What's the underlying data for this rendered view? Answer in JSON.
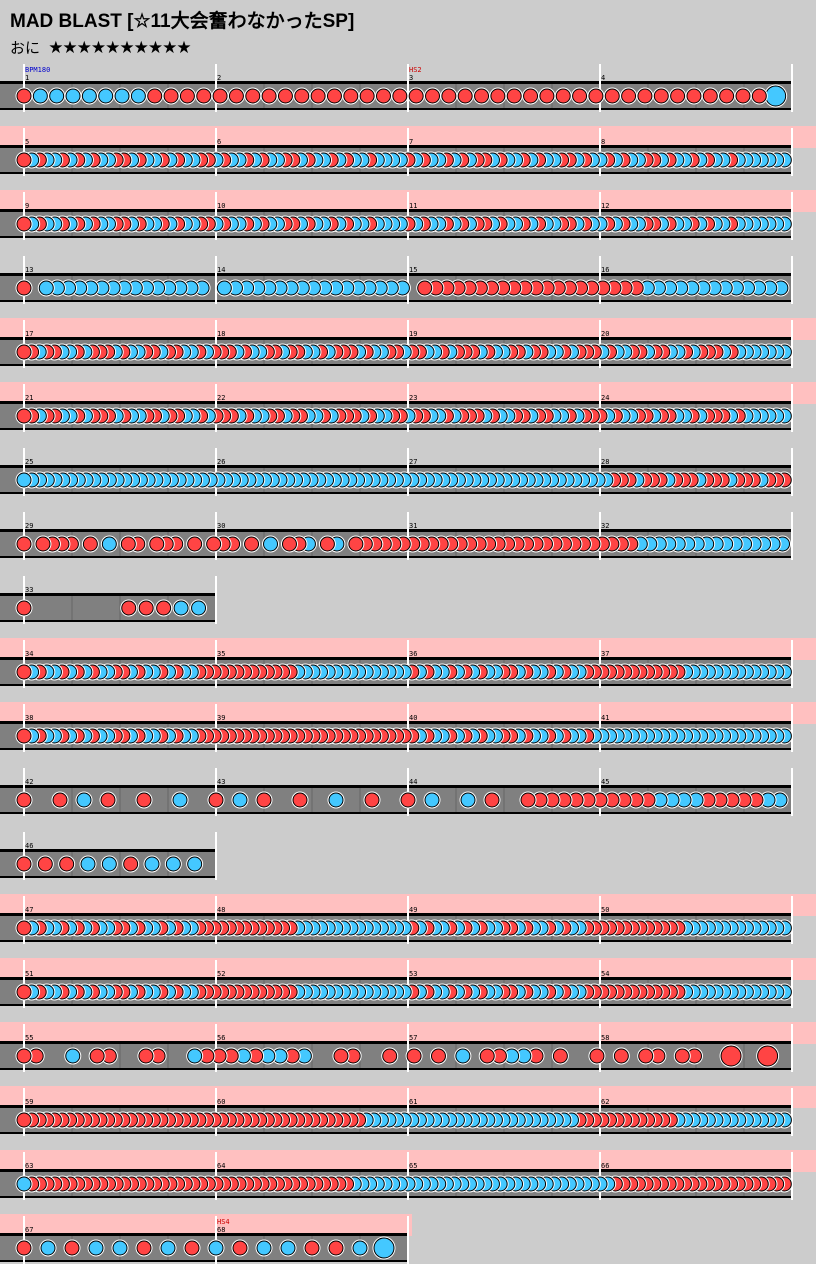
{
  "title": "MAD BLAST [☆11大会奮わなかったSP]",
  "difficulty": {
    "label": "おに",
    "stars": "★★★★★★★★★★"
  },
  "colors": {
    "background": "#cccccc",
    "lane": "#808080",
    "gogo_band": "#ffc0c0",
    "don": "#ff4444",
    "ka": "#44c8ff"
  },
  "chart_data": {
    "type": "taiko_score",
    "initial_bpm": 180,
    "events": [
      {
        "measure": 1,
        "text": "BPM180",
        "kind": "bpm"
      },
      {
        "measure": 3,
        "text": "HS2",
        "kind": "scroll"
      },
      {
        "measure": 68,
        "text": "HS4",
        "kind": "scroll"
      }
    ],
    "rows": [
      {
        "measures": [
          1,
          2,
          3,
          4
        ],
        "gogo": false,
        "pattern": "dkkkkkkkmmmmmmmmmmmmmmmmmmmmmmmmmmmmmmmmmmmmmmB"
      },
      {
        "measures": [
          5,
          6,
          7,
          8
        ],
        "gogo": true,
        "pattern": "dkdkkdkdkdkkddkdkkdkdkkddkdkkdkdkkddkdkkdkdkkdkkkkdkdkkdkdkddkdkkdkdkkddkdkkdkdkkddkdkkdkdkkdkkkkkkk"
      },
      {
        "measures": [
          9,
          10,
          11,
          12
        ],
        "gogo": true,
        "pattern": "dkdkkdkdkdkkddkdkkdkdkkddkdkkdkdkkddkdkkdkdkkdkkkkdkdkkdkdkddkdkkdkdkkddkdkkdkdkkddkdkkdkdkkdkkkkkkk"
      },
      {
        "measures": [
          13,
          14,
          15,
          16
        ],
        "gogo": false,
        "pattern": "d kkkkkkkkkkkkkkk kkkkkkkkkkkkkkkkk ddddddddddddddddddddkkkkkkkkkkkkk"
      },
      {
        "measures": [
          17,
          18,
          19,
          20
        ],
        "gogo": true,
        "pattern": "ddkddkkdkdddkdkkddkddkkdkdddkdkkddkddkkdkdddkdkkddkddkkdkdddkdkkddkddkkdkdddkdkkddkddkkdkdddkdkkkkkkk"
      },
      {
        "measures": [
          21,
          22,
          23,
          24
        ],
        "gogo": true,
        "pattern": "ddkddkkdkdddkdkkddkddkkdkdddkdkkddkddkkdkdddkdkkddkddkkdkdddkdkkddkddkkdkdddkdkkddkddkkdkdddkdkkkkkk"
      },
      {
        "measures": [
          25,
          26,
          27,
          28
        ],
        "gogo": false,
        "pattern": "kkkkkkkkkkkkkkkkkkkkkkkkkkkkkkkkkkkkkkkkkkkkkkkkkkkkkkkkkkkkkkkkkkkkkkkkkkkkdddkdddkdddkdddkdddkddd"
      },
      {
        "measures": [
          29,
          30,
          31,
          32
        ],
        "gogo": false,
        "pattern": "d dddd d k dd ddd d ddd d k ddk dk ddddddddddddddddddddddddddddddkkkkkkkkkkkkkkkk"
      },
      {
        "measures": [
          33
        ],
        "gogo": false,
        "pattern": "d     dddkk"
      },
      {
        "measures": [
          34,
          35,
          36,
          37
        ],
        "gogo": true,
        "pattern": "dkdkkdkdkdkkddkdkkdkdkkdddddddddddddkkkkkkkkkkkkkkkdkdkkdkdkdkkddkdkkdkdkkdddddddddddddkkkkkkkkkkkkkk"
      },
      {
        "measures": [
          38,
          39,
          40,
          41
        ],
        "gogo": true,
        "pattern": "dkdkkdkdkdkkddkdkkdkdkkdddddddddddddddddddddddddddddkdkkdkdkdkkddkdkkdkdkkdkkkkkkkkkkkkkkkkkkkkkkkkkk"
      },
      {
        "measures": [
          42,
          43,
          44,
          45
        ],
        "gogo": false,
        "pattern": "d  d k d  d  k  d k d  d  k  d  d k  k d  dddddddddddkkkkdddddkk"
      },
      {
        "measures": [
          46
        ],
        "gogo": false,
        "pattern": "dddkkdkkk"
      },
      {
        "measures": [
          47,
          48,
          49,
          50
        ],
        "gogo": true,
        "pattern": "dkdkkdkdkdkkddkdkkdkdkkdddddddddddddkkkkkkkkkkkkkkkdkdkkdkdkdkkddkdkkdkdkkdddddddddddddkkkkkkkkkkkkkk"
      },
      {
        "measures": [
          51,
          52,
          53,
          54
        ],
        "gogo": true,
        "pattern": "dkdkkdkdkdkkddkdkkdkdkkdddddddddddddkkkkkkkkkkkkkkkdkdkkdkdkdkkddkdkkdkdkkdddddddddddddkkkkkkkkkkkkkk"
      },
      {
        "measures": [
          55,
          56,
          57,
          58
        ],
        "gogo": true,
        "pattern": "dd  k dd  dd  kdddkdkkdk  dd  d d d k ddkkd d  d d dd dd  D  D "
      },
      {
        "measures": [
          59,
          60,
          61,
          62
        ],
        "gogo": true,
        "pattern": "dddddddddddddddddddddddddddddddddddddddddddddkkkkkkkkkkkkkkkkkkkkkkkkkkkkdddddddddddddkkkkkkkkkkkkkkk"
      },
      {
        "measures": [
          63,
          64,
          65,
          66
        ],
        "gogo": true,
        "pattern": "kddddddddddddddddddddddddddddddddddddddddddkkkkkkkkkkkkkkkkkkkkkkkkkkkkkkkkkkddddddddddddddddddddddd"
      },
      {
        "measures": [
          67,
          68
        ],
        "gogo": true,
        "pattern": "dkdkkdkdkdkkddkK"
      }
    ]
  }
}
